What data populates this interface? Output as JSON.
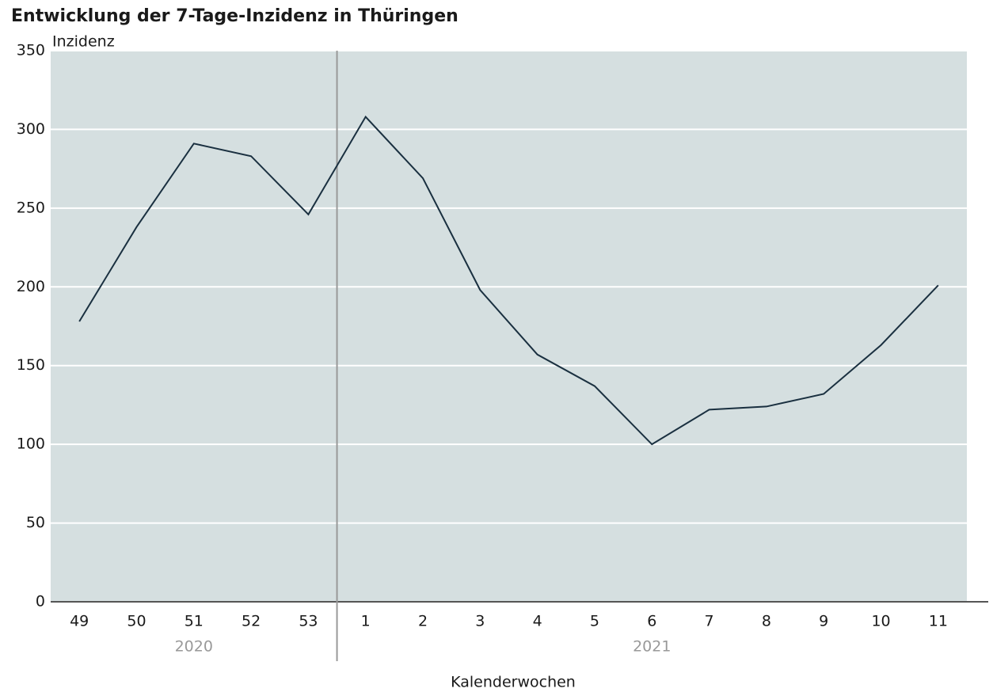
{
  "chart_data": {
    "type": "line",
    "title": "Entwicklung der 7-Tage-Inzidenz in Thüringen",
    "y_label": "Inzidenz",
    "x_label": "Kalenderwochen",
    "categories": [
      "49",
      "50",
      "51",
      "52",
      "53",
      "1",
      "2",
      "3",
      "4",
      "5",
      "6",
      "7",
      "8",
      "9",
      "10",
      "11"
    ],
    "values": [
      178,
      238,
      291,
      283,
      246,
      308,
      269,
      198,
      157,
      137,
      100,
      122,
      124,
      132,
      163,
      201
    ],
    "groups": [
      {
        "label": "2020",
        "size": 5
      },
      {
        "label": "2021",
        "size": 11
      }
    ],
    "color": "#1a3040",
    "ylim": [
      0,
      350
    ],
    "yticks": [
      0,
      50,
      100,
      150,
      200,
      250,
      300,
      350
    ],
    "grid": true
  }
}
